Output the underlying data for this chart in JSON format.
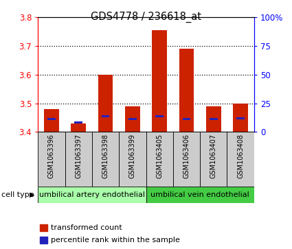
{
  "title": "GDS4778 / 236618_at",
  "samples": [
    "GSM1063396",
    "GSM1063397",
    "GSM1063398",
    "GSM1063399",
    "GSM1063405",
    "GSM1063406",
    "GSM1063407",
    "GSM1063408"
  ],
  "red_values": [
    3.48,
    3.43,
    3.6,
    3.49,
    3.755,
    3.69,
    3.49,
    3.5
  ],
  "blue_values": [
    3.445,
    3.433,
    3.455,
    3.445,
    3.455,
    3.445,
    3.445,
    3.448
  ],
  "ymin": 3.4,
  "ymax": 3.8,
  "yticks": [
    3.4,
    3.5,
    3.6,
    3.7,
    3.8
  ],
  "right_yticks": [
    0,
    25,
    50,
    75,
    100
  ],
  "right_ytick_labels": [
    "0",
    "25",
    "50",
    "75",
    "100%"
  ],
  "bar_color": "#cc2200",
  "blue_color": "#2222bb",
  "sample_box_color": "#cccccc",
  "cell_type_groups": [
    {
      "label": "umbilical artery endothelial",
      "start": 0,
      "end": 4,
      "color": "#aaffaa"
    },
    {
      "label": "umbilical vein endothelial",
      "start": 4,
      "end": 8,
      "color": "#44cc44"
    }
  ],
  "legend_red": "transformed count",
  "legend_blue": "percentile rank within the sample",
  "cell_type_label": "cell type"
}
